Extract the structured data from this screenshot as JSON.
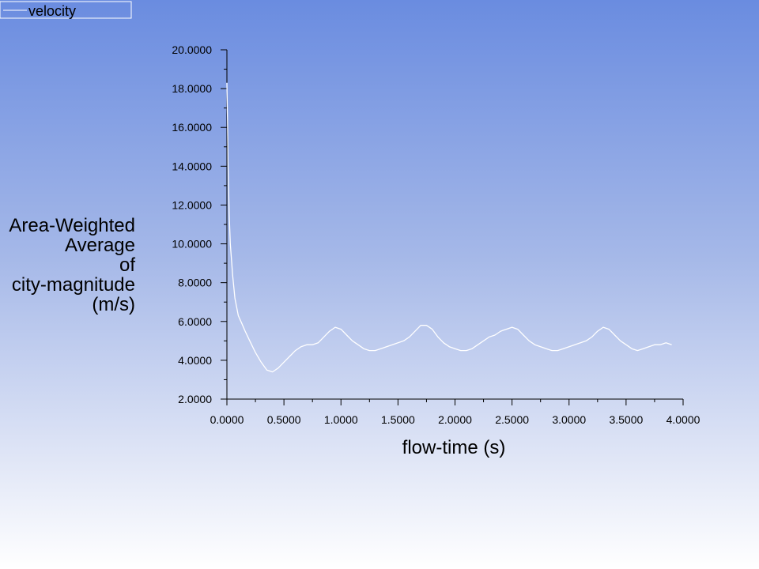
{
  "chart_data": {
    "type": "line",
    "title": "",
    "xlabel": "flow-time (s)",
    "ylabel_lines": [
      "Area-Weighted",
      "Average",
      "of",
      "city-magnitude",
      "(m/s)"
    ],
    "xlim": [
      0,
      4
    ],
    "ylim": [
      2,
      20
    ],
    "x_ticks": [
      "0.0000",
      "0.5000",
      "1.0000",
      "1.5000",
      "2.0000",
      "2.5000",
      "3.0000",
      "3.5000",
      "4.0000"
    ],
    "y_ticks": [
      "2.0000",
      "4.0000",
      "6.0000",
      "8.0000",
      "10.0000",
      "12.0000",
      "14.0000",
      "16.0000",
      "18.0000",
      "20.0000"
    ],
    "grid": false,
    "legend_position": "top-left",
    "line_color": "#ffffff",
    "series": [
      {
        "name": "velocity",
        "x": [
          0.0,
          0.005,
          0.01,
          0.02,
          0.03,
          0.05,
          0.07,
          0.1,
          0.13,
          0.16,
          0.2,
          0.25,
          0.3,
          0.35,
          0.4,
          0.45,
          0.5,
          0.55,
          0.6,
          0.65,
          0.7,
          0.75,
          0.8,
          0.85,
          0.9,
          0.95,
          1.0,
          1.05,
          1.1,
          1.15,
          1.2,
          1.25,
          1.3,
          1.35,
          1.4,
          1.45,
          1.5,
          1.55,
          1.6,
          1.65,
          1.7,
          1.75,
          1.8,
          1.85,
          1.9,
          1.95,
          2.0,
          2.05,
          2.1,
          2.15,
          2.2,
          2.25,
          2.3,
          2.35,
          2.4,
          2.45,
          2.5,
          2.55,
          2.6,
          2.65,
          2.7,
          2.75,
          2.8,
          2.85,
          2.9,
          2.95,
          3.0,
          3.05,
          3.1,
          3.15,
          3.2,
          3.25,
          3.3,
          3.35,
          3.4,
          3.45,
          3.5,
          3.55,
          3.6,
          3.65,
          3.7,
          3.75,
          3.8,
          3.85,
          3.9
        ],
        "y": [
          18.3,
          16.5,
          14.2,
          11.5,
          10.0,
          8.4,
          7.2,
          6.3,
          5.9,
          5.5,
          5.0,
          4.4,
          3.9,
          3.5,
          3.4,
          3.6,
          3.9,
          4.2,
          4.5,
          4.7,
          4.8,
          4.8,
          4.9,
          5.2,
          5.5,
          5.7,
          5.6,
          5.3,
          5.0,
          4.8,
          4.6,
          4.5,
          4.5,
          4.6,
          4.7,
          4.8,
          4.9,
          5.0,
          5.2,
          5.5,
          5.8,
          5.8,
          5.6,
          5.2,
          4.9,
          4.7,
          4.6,
          4.5,
          4.5,
          4.6,
          4.8,
          5.0,
          5.2,
          5.3,
          5.5,
          5.6,
          5.7,
          5.6,
          5.3,
          5.0,
          4.8,
          4.7,
          4.6,
          4.5,
          4.5,
          4.6,
          4.7,
          4.8,
          4.9,
          5.0,
          5.2,
          5.5,
          5.7,
          5.6,
          5.3,
          5.0,
          4.8,
          4.6,
          4.5,
          4.6,
          4.7,
          4.8,
          4.8,
          4.9,
          4.8
        ]
      }
    ]
  }
}
